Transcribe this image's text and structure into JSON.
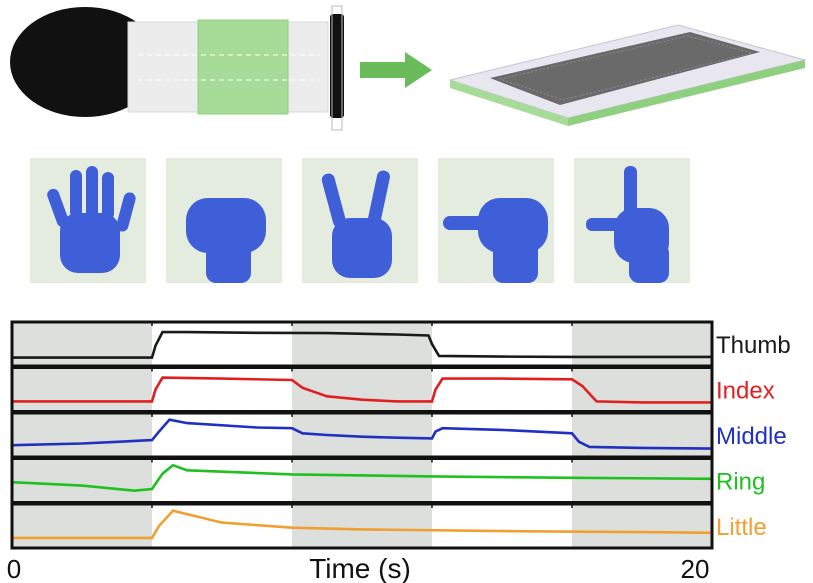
{
  "illustration": {
    "arrow_color": "#6abb5a",
    "accent_green": "#8fd07f",
    "glove_color": "#3f5fd8"
  },
  "photos": [
    {
      "gesture_icon": "open-hand-icon"
    },
    {
      "gesture_icon": "fist-icon"
    },
    {
      "gesture_icon": "victory-sign-icon"
    },
    {
      "gesture_icon": "thumb-out-fist-icon"
    },
    {
      "gesture_icon": "l-shape-hand-icon"
    }
  ],
  "chart_data": {
    "type": "line",
    "xlabel": "Time (s)",
    "xlim": [
      0,
      20
    ],
    "x_tick_labels": [
      "0",
      "20"
    ],
    "shaded_intervals": [
      [
        0,
        4
      ],
      [
        8,
        12
      ],
      [
        16,
        20
      ]
    ],
    "grid": false,
    "legend_placement": "right of each panel",
    "series": [
      {
        "name": "Thumb",
        "color": "#1a1a1a",
        "points": [
          [
            0,
            0.1
          ],
          [
            4,
            0.1
          ],
          [
            4.1,
            0.45
          ],
          [
            4.3,
            0.85
          ],
          [
            5,
            0.85
          ],
          [
            7,
            0.83
          ],
          [
            9,
            0.82
          ],
          [
            11,
            0.78
          ],
          [
            11.9,
            0.75
          ],
          [
            12,
            0.5
          ],
          [
            12.2,
            0.15
          ],
          [
            14,
            0.13
          ],
          [
            16,
            0.12
          ],
          [
            18,
            0.12
          ],
          [
            20,
            0.12
          ]
        ]
      },
      {
        "name": "Index",
        "color": "#e02020",
        "points": [
          [
            0,
            0.15
          ],
          [
            4,
            0.15
          ],
          [
            4.1,
            0.5
          ],
          [
            4.3,
            0.85
          ],
          [
            6,
            0.82
          ],
          [
            8,
            0.78
          ],
          [
            8.3,
            0.55
          ],
          [
            9,
            0.3
          ],
          [
            10,
            0.2
          ],
          [
            11,
            0.15
          ],
          [
            12,
            0.15
          ],
          [
            12.1,
            0.5
          ],
          [
            12.3,
            0.82
          ],
          [
            14,
            0.82
          ],
          [
            16,
            0.8
          ],
          [
            16.3,
            0.6
          ],
          [
            16.7,
            0.15
          ],
          [
            18,
            0.12
          ],
          [
            20,
            0.12
          ]
        ]
      },
      {
        "name": "Middle",
        "color": "#2030c0",
        "points": [
          [
            0,
            0.2
          ],
          [
            2,
            0.25
          ],
          [
            4,
            0.35
          ],
          [
            4.2,
            0.6
          ],
          [
            4.5,
            0.95
          ],
          [
            5,
            0.85
          ],
          [
            7,
            0.72
          ],
          [
            8,
            0.7
          ],
          [
            8.3,
            0.55
          ],
          [
            9,
            0.5
          ],
          [
            10,
            0.45
          ],
          [
            11,
            0.42
          ],
          [
            12,
            0.4
          ],
          [
            12.1,
            0.6
          ],
          [
            12.3,
            0.7
          ],
          [
            14,
            0.65
          ],
          [
            16,
            0.55
          ],
          [
            16.2,
            0.3
          ],
          [
            16.5,
            0.15
          ],
          [
            18,
            0.12
          ],
          [
            20,
            0.1
          ]
        ]
      },
      {
        "name": "Ring",
        "color": "#20c020",
        "points": [
          [
            0,
            0.45
          ],
          [
            2,
            0.35
          ],
          [
            3.5,
            0.2
          ],
          [
            4,
            0.25
          ],
          [
            4.3,
            0.7
          ],
          [
            4.6,
            0.95
          ],
          [
            5,
            0.8
          ],
          [
            8,
            0.68
          ],
          [
            12,
            0.62
          ],
          [
            16,
            0.58
          ],
          [
            20,
            0.55
          ]
        ]
      },
      {
        "name": "Little",
        "color": "#f0a030",
        "points": [
          [
            0,
            0.15
          ],
          [
            4,
            0.15
          ],
          [
            4.2,
            0.5
          ],
          [
            4.6,
            0.95
          ],
          [
            5,
            0.85
          ],
          [
            6,
            0.6
          ],
          [
            8,
            0.45
          ],
          [
            10,
            0.4
          ],
          [
            14,
            0.35
          ],
          [
            18,
            0.32
          ],
          [
            20,
            0.3
          ]
        ]
      }
    ]
  }
}
